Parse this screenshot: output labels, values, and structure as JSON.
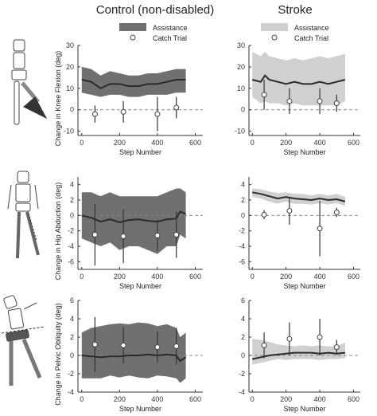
{
  "columns": [
    {
      "title": "Control (non-disabled)",
      "band_color": "#707070"
    },
    {
      "title": "Stroke",
      "band_color": "#d0d0d0"
    }
  ],
  "legend": {
    "band_label": "Assistance",
    "marker_label": "Catch Trial"
  },
  "colors": {
    "mean_line": "#2a2a2a",
    "zero_line": "#888888",
    "marker": "#444444"
  },
  "chart_data": [
    {
      "type": "line",
      "row": 0,
      "col": 0,
      "ylabel": "Change in Knee Flexion (deg)",
      "xlabel": "Step Number",
      "xlim": [
        -20,
        640
      ],
      "xticks": [
        0,
        200,
        400,
        600
      ],
      "ylim": [
        -12,
        30
      ],
      "yticks": [
        -10,
        0,
        10,
        20,
        30
      ],
      "series": [
        {
          "values": {
            "x": [
              0,
              50,
              100,
              150,
              200,
              250,
              300,
              350,
              400,
              450,
              500,
              550
            ],
            "mean": [
              14,
              13,
              10,
              12,
              12,
              11,
              11,
              12,
              12,
              13,
              14,
              14
            ],
            "lower": [
              8,
              7,
              6,
              7,
              7,
              6,
              6,
              7,
              7,
              7,
              8,
              8
            ],
            "upper": [
              20,
              19,
              16,
              18,
              17,
              16,
              16,
              17,
              17,
              18,
              19,
              19
            ]
          }
        }
      ],
      "catch_trials": [
        {
          "x": 70,
          "y": -2,
          "err": 4
        },
        {
          "x": 220,
          "y": -1,
          "err": 5
        },
        {
          "x": 400,
          "y": -2,
          "err": 8
        },
        {
          "x": 500,
          "y": 1,
          "err": 5
        }
      ]
    },
    {
      "type": "line",
      "row": 0,
      "col": 1,
      "ylabel": "",
      "xlabel": "Step Number",
      "xlim": [
        -20,
        640
      ],
      "xticks": [
        0,
        200,
        400,
        600
      ],
      "ylim": [
        -12,
        30
      ],
      "yticks": [
        -10,
        0,
        10,
        20,
        30
      ],
      "series": [
        {
          "values": {
            "x": [
              0,
              50,
              75,
              100,
              150,
              200,
              250,
              300,
              350,
              400,
              450,
              500,
              550
            ],
            "mean": [
              14,
              13,
              16,
              14,
              13,
              12,
              13,
              12,
              12,
              13,
              12,
              13,
              14
            ],
            "lower": [
              6,
              3,
              4,
              3,
              3,
              2,
              3,
              2,
              2,
              2,
              2,
              2,
              4
            ],
            "upper": [
              27,
              25,
              27,
              25,
              24,
              23,
              24,
              23,
              24,
              25,
              24,
              25,
              26
            ]
          }
        }
      ],
      "catch_trials": [
        {
          "x": 70,
          "y": 7,
          "err": 7
        },
        {
          "x": 220,
          "y": 4,
          "err": 6
        },
        {
          "x": 400,
          "y": 4,
          "err": 6
        },
        {
          "x": 500,
          "y": 3,
          "err": 4
        }
      ]
    },
    {
      "type": "line",
      "row": 1,
      "col": 0,
      "ylabel": "Change in Hip Abduction (deg)",
      "xlabel": "Step Number",
      "xlim": [
        -20,
        640
      ],
      "xticks": [
        0,
        200,
        400,
        600
      ],
      "ylim": [
        -7,
        5
      ],
      "yticks": [
        -6,
        -4,
        -2,
        0,
        2,
        4
      ],
      "series": [
        {
          "values": {
            "x": [
              0,
              50,
              100,
              150,
              200,
              250,
              300,
              350,
              400,
              450,
              500,
              520,
              550
            ],
            "mean": [
              0,
              -0.3,
              -0.8,
              -0.5,
              -0.9,
              -0.6,
              -0.5,
              -0.7,
              -0.8,
              -0.5,
              -0.4,
              0.5,
              0.2
            ],
            "lower": [
              -3,
              -3.5,
              -4,
              -3.5,
              -4.5,
              -4,
              -4,
              -4.5,
              -5,
              -4,
              -4,
              -2.5,
              -3
            ],
            "upper": [
              3,
              3,
              2.5,
              3,
              2.5,
              2.5,
              2.5,
              2.5,
              2.5,
              3,
              3.5,
              3.5,
              3
            ]
          }
        }
      ],
      "catch_trials": [
        {
          "x": 70,
          "y": -2.5,
          "err": 4
        },
        {
          "x": 220,
          "y": -2.7,
          "err": 3.5
        },
        {
          "x": 400,
          "y": -2.6,
          "err": 2
        },
        {
          "x": 500,
          "y": -2.5,
          "err": 3
        }
      ]
    },
    {
      "type": "line",
      "row": 1,
      "col": 1,
      "ylabel": "",
      "xlabel": "Step Number",
      "xlim": [
        -20,
        640
      ],
      "xticks": [
        0,
        200,
        400,
        600
      ],
      "ylim": [
        -7,
        5
      ],
      "yticks": [
        -6,
        -4,
        -2,
        0,
        2,
        4
      ],
      "series": [
        {
          "values": {
            "x": [
              0,
              50,
              100,
              150,
              200,
              250,
              300,
              350,
              400,
              450,
              500,
              550
            ],
            "mean": [
              3,
              2.8,
              2.5,
              2.2,
              2.4,
              2.2,
              2.1,
              2,
              2.2,
              2,
              2.1,
              1.8
            ],
            "lower": [
              2.4,
              2.2,
              1.8,
              1.5,
              1.8,
              1.5,
              1.5,
              1.4,
              1.6,
              1.4,
              1.6,
              1.2
            ],
            "upper": [
              3.5,
              3.4,
              3.1,
              2.9,
              3,
              2.8,
              2.8,
              2.6,
              2.8,
              2.6,
              2.8,
              2.4
            ]
          }
        }
      ],
      "catch_trials": [
        {
          "x": 70,
          "y": 0.1,
          "err": 0.6
        },
        {
          "x": 220,
          "y": 0.6,
          "err": 1.8
        },
        {
          "x": 400,
          "y": -1.7,
          "err": 3.6
        },
        {
          "x": 500,
          "y": 0.4,
          "err": 0.6
        }
      ]
    },
    {
      "type": "line",
      "row": 2,
      "col": 0,
      "ylabel": "Change in Pelvic Obliquity (deg)",
      "xlabel": "Step Number",
      "xlim": [
        -20,
        640
      ],
      "xticks": [
        0,
        200,
        400,
        600
      ],
      "ylim": [
        -4,
        6
      ],
      "yticks": [
        -4,
        -2,
        0,
        2,
        4,
        6
      ],
      "series": [
        {
          "values": {
            "x": [
              0,
              50,
              100,
              150,
              200,
              250,
              300,
              350,
              400,
              450,
              500,
              520,
              550
            ],
            "mean": [
              0,
              -0.1,
              -0.2,
              -0.1,
              -0.1,
              0,
              0,
              0.1,
              0,
              0.1,
              0,
              -0.6,
              -0.2
            ],
            "lower": [
              -2.5,
              -2.5,
              -2.5,
              -2.2,
              -2.4,
              -2.2,
              -2.4,
              -2.5,
              -2.2,
              -2.3,
              -2.5,
              -3,
              -2.5
            ],
            "upper": [
              2.5,
              3,
              3.2,
              3.4,
              3.5,
              3.4,
              3.6,
              3.5,
              3.2,
              3.4,
              3,
              2,
              2.5
            ]
          }
        }
      ],
      "catch_trials": [
        {
          "x": 70,
          "y": 1.2,
          "err": 3
        },
        {
          "x": 220,
          "y": 1.1,
          "err": 2
        },
        {
          "x": 400,
          "y": 0.9,
          "err": 1.7
        },
        {
          "x": 500,
          "y": 1,
          "err": 2
        }
      ]
    },
    {
      "type": "line",
      "row": 2,
      "col": 1,
      "ylabel": "",
      "xlabel": "Step Number",
      "xlim": [
        -20,
        640
      ],
      "xticks": [
        0,
        200,
        400,
        600
      ],
      "ylim": [
        -4,
        6
      ],
      "yticks": [
        -4,
        -2,
        0,
        2,
        4,
        6
      ],
      "series": [
        {
          "values": {
            "x": [
              0,
              50,
              100,
              150,
              200,
              250,
              300,
              350,
              400,
              450,
              500,
              550
            ],
            "mean": [
              -0.4,
              -0.2,
              0,
              0.1,
              0.2,
              0.3,
              0.3,
              0.3,
              0.2,
              0.3,
              0.2,
              0.3
            ],
            "lower": [
              -1,
              -0.8,
              -0.6,
              -0.4,
              -0.5,
              -0.4,
              -0.4,
              -0.4,
              -0.5,
              -0.4,
              -0.4,
              -0.3
            ],
            "upper": [
              1.8,
              1.7,
              1.5,
              1.2,
              1.1,
              1,
              1.1,
              1,
              1.1,
              1,
              1,
              1.4
            ]
          }
        }
      ],
      "catch_trials": [
        {
          "x": 70,
          "y": 1.1,
          "err": 1.4
        },
        {
          "x": 220,
          "y": 1.8,
          "err": 1.8
        },
        {
          "x": 400,
          "y": 2,
          "err": 2
        },
        {
          "x": 500,
          "y": 0.9,
          "err": 0.8
        }
      ]
    }
  ]
}
